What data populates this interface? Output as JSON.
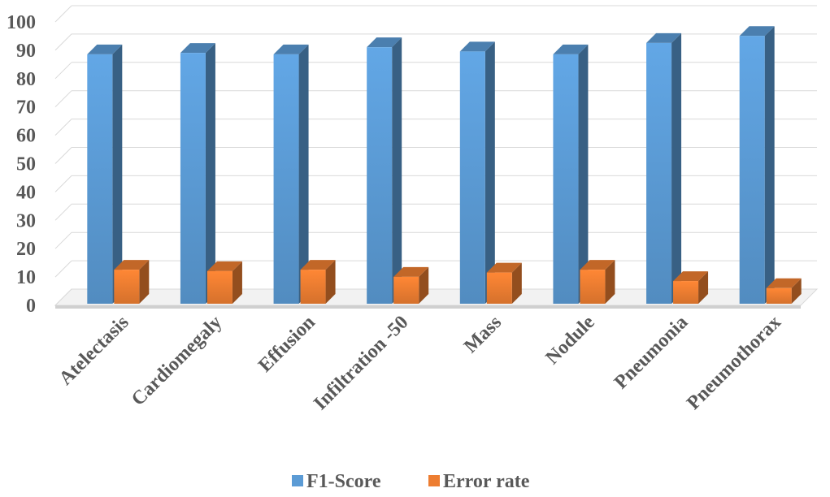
{
  "chart_data": {
    "type": "bar",
    "style": "3d-clustered-column",
    "categories": [
      "Atelectasis",
      "Cardiomegaly",
      "Effusion",
      "Infiltration -50",
      "Mass",
      "Nodule",
      "Pneumonia",
      "Pneumothorax"
    ],
    "series": [
      {
        "name": "F1-Score",
        "color": "#5b9bd5",
        "values": [
          88,
          88.5,
          88,
          90.5,
          89,
          88,
          92,
          94.5
        ]
      },
      {
        "name": "Error rate",
        "color": "#ed7d31",
        "values": [
          12,
          11.5,
          12,
          9.5,
          11,
          12,
          8,
          5.5
        ]
      }
    ],
    "yticks": [
      "0",
      "10",
      "20",
      "30",
      "40",
      "50",
      "60",
      "70",
      "80",
      "90",
      "100"
    ],
    "ylim": [
      0,
      100
    ],
    "grid": true,
    "legend_position": "bottom",
    "title": "",
    "xlabel": "",
    "ylabel": ""
  }
}
